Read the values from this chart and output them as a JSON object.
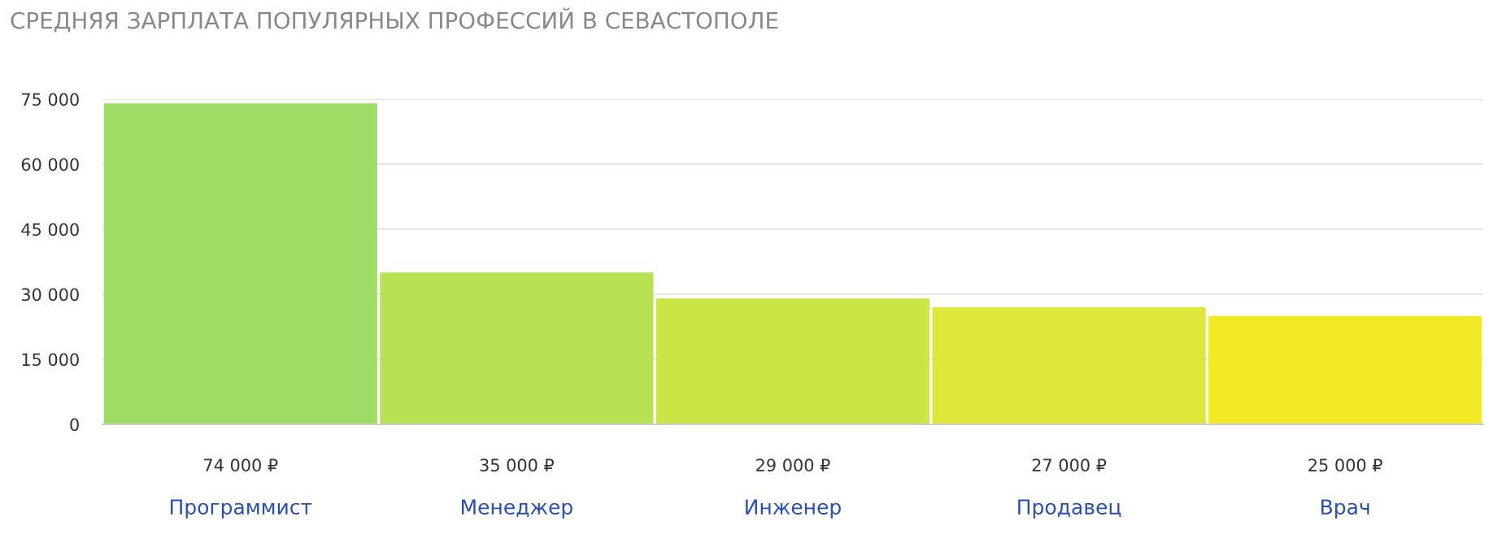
{
  "chart_data": {
    "type": "bar",
    "title": "СРЕДНЯЯ ЗАРПЛАТА ПОПУЛЯРНЫХ ПРОФЕССИЙ В СЕВАСТОПОЛЕ",
    "categories": [
      "Программист",
      "Менеджер",
      "Инженер",
      "Продавец",
      "Врач"
    ],
    "values": [
      74000,
      35000,
      29000,
      27000,
      25000
    ],
    "colors": [
      "#9edc64",
      "#b6e152",
      "#cae546",
      "#dfe83a",
      "#f2ea22"
    ],
    "value_labels": [
      "74 000 ₽",
      "35 000 ₽",
      "29 000 ₽",
      "27 000 ₽",
      "25 000 ₽"
    ],
    "ylim": [
      0,
      75000
    ],
    "yticks": [
      {
        "value": 0,
        "label": "0"
      },
      {
        "value": 15000,
        "label": "15 000"
      },
      {
        "value": 30000,
        "label": "30 000"
      },
      {
        "value": 45000,
        "label": "45 000"
      },
      {
        "value": 60000,
        "label": "60 000"
      },
      {
        "value": 75000,
        "label": "75 000"
      }
    ],
    "grid": "y",
    "legend": false
  }
}
